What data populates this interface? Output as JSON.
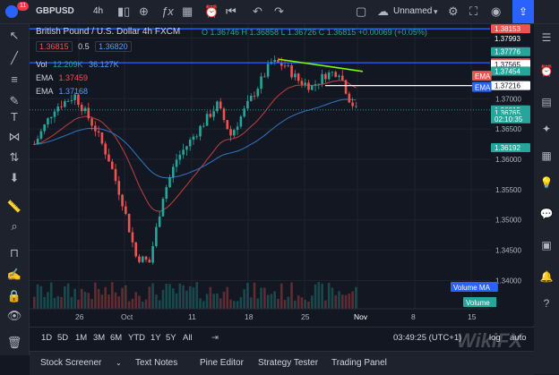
{
  "header": {
    "badge": "11",
    "symbol": "GBPUSD",
    "interval": "4h",
    "layout_name": "Unnamed"
  },
  "legend": {
    "title": "British Pound / U.S. Dollar  4h  FXCM",
    "ohlc": "O 1.36746  H 1.36858  L 1.36726  C 1.36815  +0.00069 (+0.05%)",
    "bid": "1.36815",
    "spread": "0.5",
    "ask": "1.36820",
    "vol_label": "Vol",
    "vol_value1": "12.209K",
    "vol_value2": "36.127K",
    "ema1_label": "EMA",
    "ema1_value": "1.37459",
    "ema2_label": "EMA",
    "ema2_value": "1.37168"
  },
  "colors": {
    "up": "#26a69a",
    "down": "#ef5350",
    "blue": "#2962ff",
    "lightblue": "#5b9cf6",
    "green_trend": "#7cfc00",
    "ema_red": "#b23c3c",
    "ema_blue": "#2f6fb3"
  },
  "chart_data": {
    "type": "candlestick",
    "price_scale": [
      "1.38153",
      "1.37993",
      "1.37776",
      "1.37593",
      "1.37565",
      "1.38000",
      "1.37456",
      "1.37454",
      "1.37216",
      "1.37000",
      "1.36815",
      "02:10:35",
      "1.36765",
      "1.36500",
      "1.36192",
      "1.36000",
      "1.35500",
      "1.35000",
      "1.34500",
      "1.34000"
    ],
    "time_axis": [
      "26",
      "Oct",
      "11",
      "18",
      "25",
      "Nov",
      "8",
      "15"
    ],
    "price_tags": [
      {
        "label": "1.38153",
        "price": 1.38153,
        "color": "#ef5350"
      },
      {
        "label": "1.37993",
        "price": 1.37993,
        "color": "#131722"
      },
      {
        "label": "1.37776",
        "price": 1.37776,
        "color": "#26a69a"
      },
      {
        "label": "1.37593",
        "price": 1.37593,
        "color": "#ef5350"
      },
      {
        "label": "1.37565",
        "price": 1.37565,
        "color": "#ffffff"
      },
      {
        "label": "1.37456",
        "price": 1.37456,
        "color": "#ef5350"
      },
      {
        "label": "1.37454",
        "price": 1.37454,
        "color": "#26a69a"
      },
      {
        "label": "1.37216",
        "price": 1.37216,
        "color": "#ffffff"
      },
      {
        "label": "1.36815",
        "price": 1.36815,
        "color": "#26a69a"
      },
      {
        "label": "1.36765",
        "price": 1.36765,
        "color": "#26a69a"
      },
      {
        "label": "1.36192",
        "price": 1.36192,
        "color": "#26a69a"
      }
    ],
    "overlay_labels": [
      {
        "text": "EMA",
        "color": "#ef5350"
      },
      {
        "text": "EMA",
        "color": "#2962ff"
      },
      {
        "text": "Volume MA",
        "color": "#2962ff"
      },
      {
        "text": "Volume",
        "color": "#26a69a"
      }
    ],
    "horizontal_lines": [
      {
        "price": 1.38153,
        "color": "#2962ff"
      },
      {
        "price": 1.37593,
        "color": "#2962ff"
      },
      {
        "price": 1.37216,
        "color": "#ffffff"
      }
    ],
    "trendline": {
      "from_price": 1.3765,
      "to_price": 1.3745,
      "color": "#7cfc00"
    },
    "current_price": "1.36815",
    "countdown": "02:10:35"
  },
  "ranges": [
    "1D",
    "5D",
    "1M",
    "3M",
    "6M",
    "YTD",
    "1Y",
    "5Y",
    "All"
  ],
  "clock": "03:49:25 (UTC+1)",
  "scale_options": {
    "log": "log",
    "auto": "auto"
  },
  "panels": [
    "Stock Screener",
    "Text Notes",
    "Pine Editor",
    "Strategy Tester",
    "Trading Panel"
  ],
  "watermark": "WikiFX"
}
